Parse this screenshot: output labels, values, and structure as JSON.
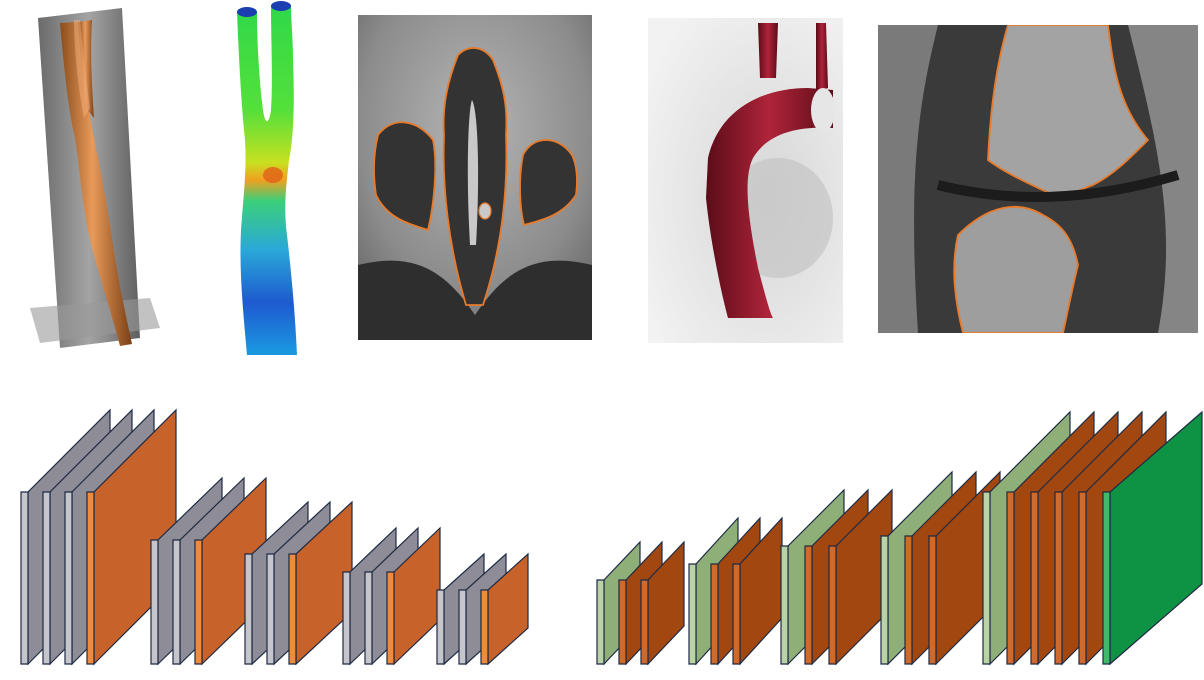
{
  "colors": {
    "encoder_gray": "#8e8c96",
    "encoder_gray_side": "#c6c5cc",
    "encoder_orange": "#c7632a",
    "encoder_orange_side": "#f08a3c",
    "decoder_light_green": "#8faf78",
    "decoder_light_green_side": "#b9d3a5",
    "decoder_brown": "#a1470f",
    "decoder_brown_side": "#d06a2a",
    "decoder_final_green": "#0e9244",
    "decoder_final_green_side": "#3fba6a",
    "outline": "#1e2a44",
    "segmentation_contour": "#e87a2a"
  },
  "images": [
    {
      "name": "carotid-mesh-with-ct-planes"
    },
    {
      "name": "carotid-colored-surface-map"
    },
    {
      "name": "sinus-ct-slice-with-contour"
    },
    {
      "name": "aorta-volume-rendering"
    },
    {
      "name": "knee-mri-with-contour"
    }
  ],
  "encoder_blocks": [
    {
      "layers": [
        "gray",
        "gray",
        "gray",
        "orange"
      ]
    },
    {
      "layers": [
        "gray",
        "gray",
        "orange"
      ]
    },
    {
      "layers": [
        "gray",
        "gray",
        "orange"
      ]
    },
    {
      "layers": [
        "gray",
        "gray",
        "orange"
      ]
    },
    {
      "layers": [
        "gray",
        "gray",
        "orange"
      ]
    }
  ],
  "decoder_blocks": [
    {
      "layers": [
        "lightgreen",
        "brown",
        "brown"
      ]
    },
    {
      "layers": [
        "lightgreen",
        "brown",
        "brown"
      ]
    },
    {
      "layers": [
        "lightgreen",
        "brown",
        "brown"
      ]
    },
    {
      "layers": [
        "lightgreen",
        "brown",
        "brown"
      ]
    },
    {
      "layers": [
        "lightgreen",
        "brown",
        "brown",
        "brown",
        "brown",
        "green"
      ]
    }
  ]
}
